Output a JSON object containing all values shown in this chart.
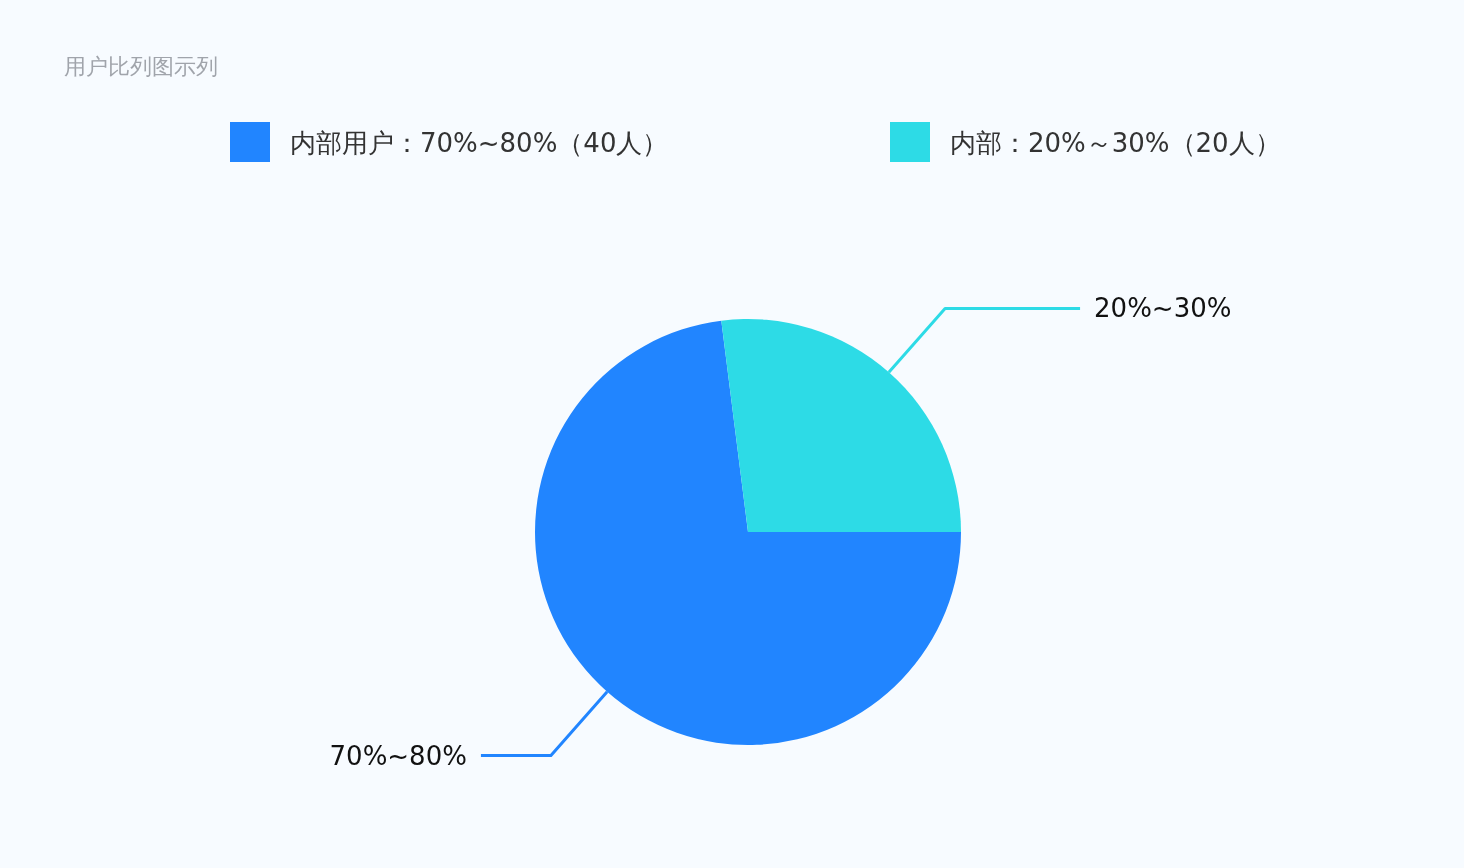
{
  "chart_data": {
    "type": "pie",
    "title": "用户比列图示列",
    "categories": [
      "内部用户：70%~80%（40人）",
      "内部：20%～30%（20人）"
    ],
    "values": [
      73,
      27
    ],
    "colors": [
      "#2185ff",
      "#2ddbe6"
    ],
    "annotations": [
      "70%~80%",
      "20%~30%"
    ],
    "legend": "top"
  }
}
